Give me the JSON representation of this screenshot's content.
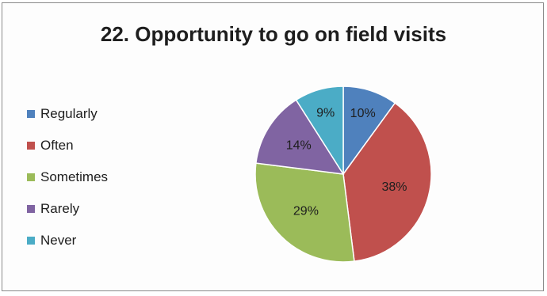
{
  "chart_data": {
    "type": "pie",
    "title": "22. Opportunity to go on field visits",
    "categories": [
      "Regularly",
      "Often",
      "Sometimes",
      "Rarely",
      "Never"
    ],
    "values": [
      10,
      38,
      29,
      14,
      9
    ],
    "value_labels": [
      "10%",
      "38%",
      "29%",
      "14%",
      "9%"
    ],
    "colors": [
      "#4f81bd",
      "#c0504d",
      "#9bbb59",
      "#8064a2",
      "#4bacc6"
    ],
    "legend": "left"
  }
}
